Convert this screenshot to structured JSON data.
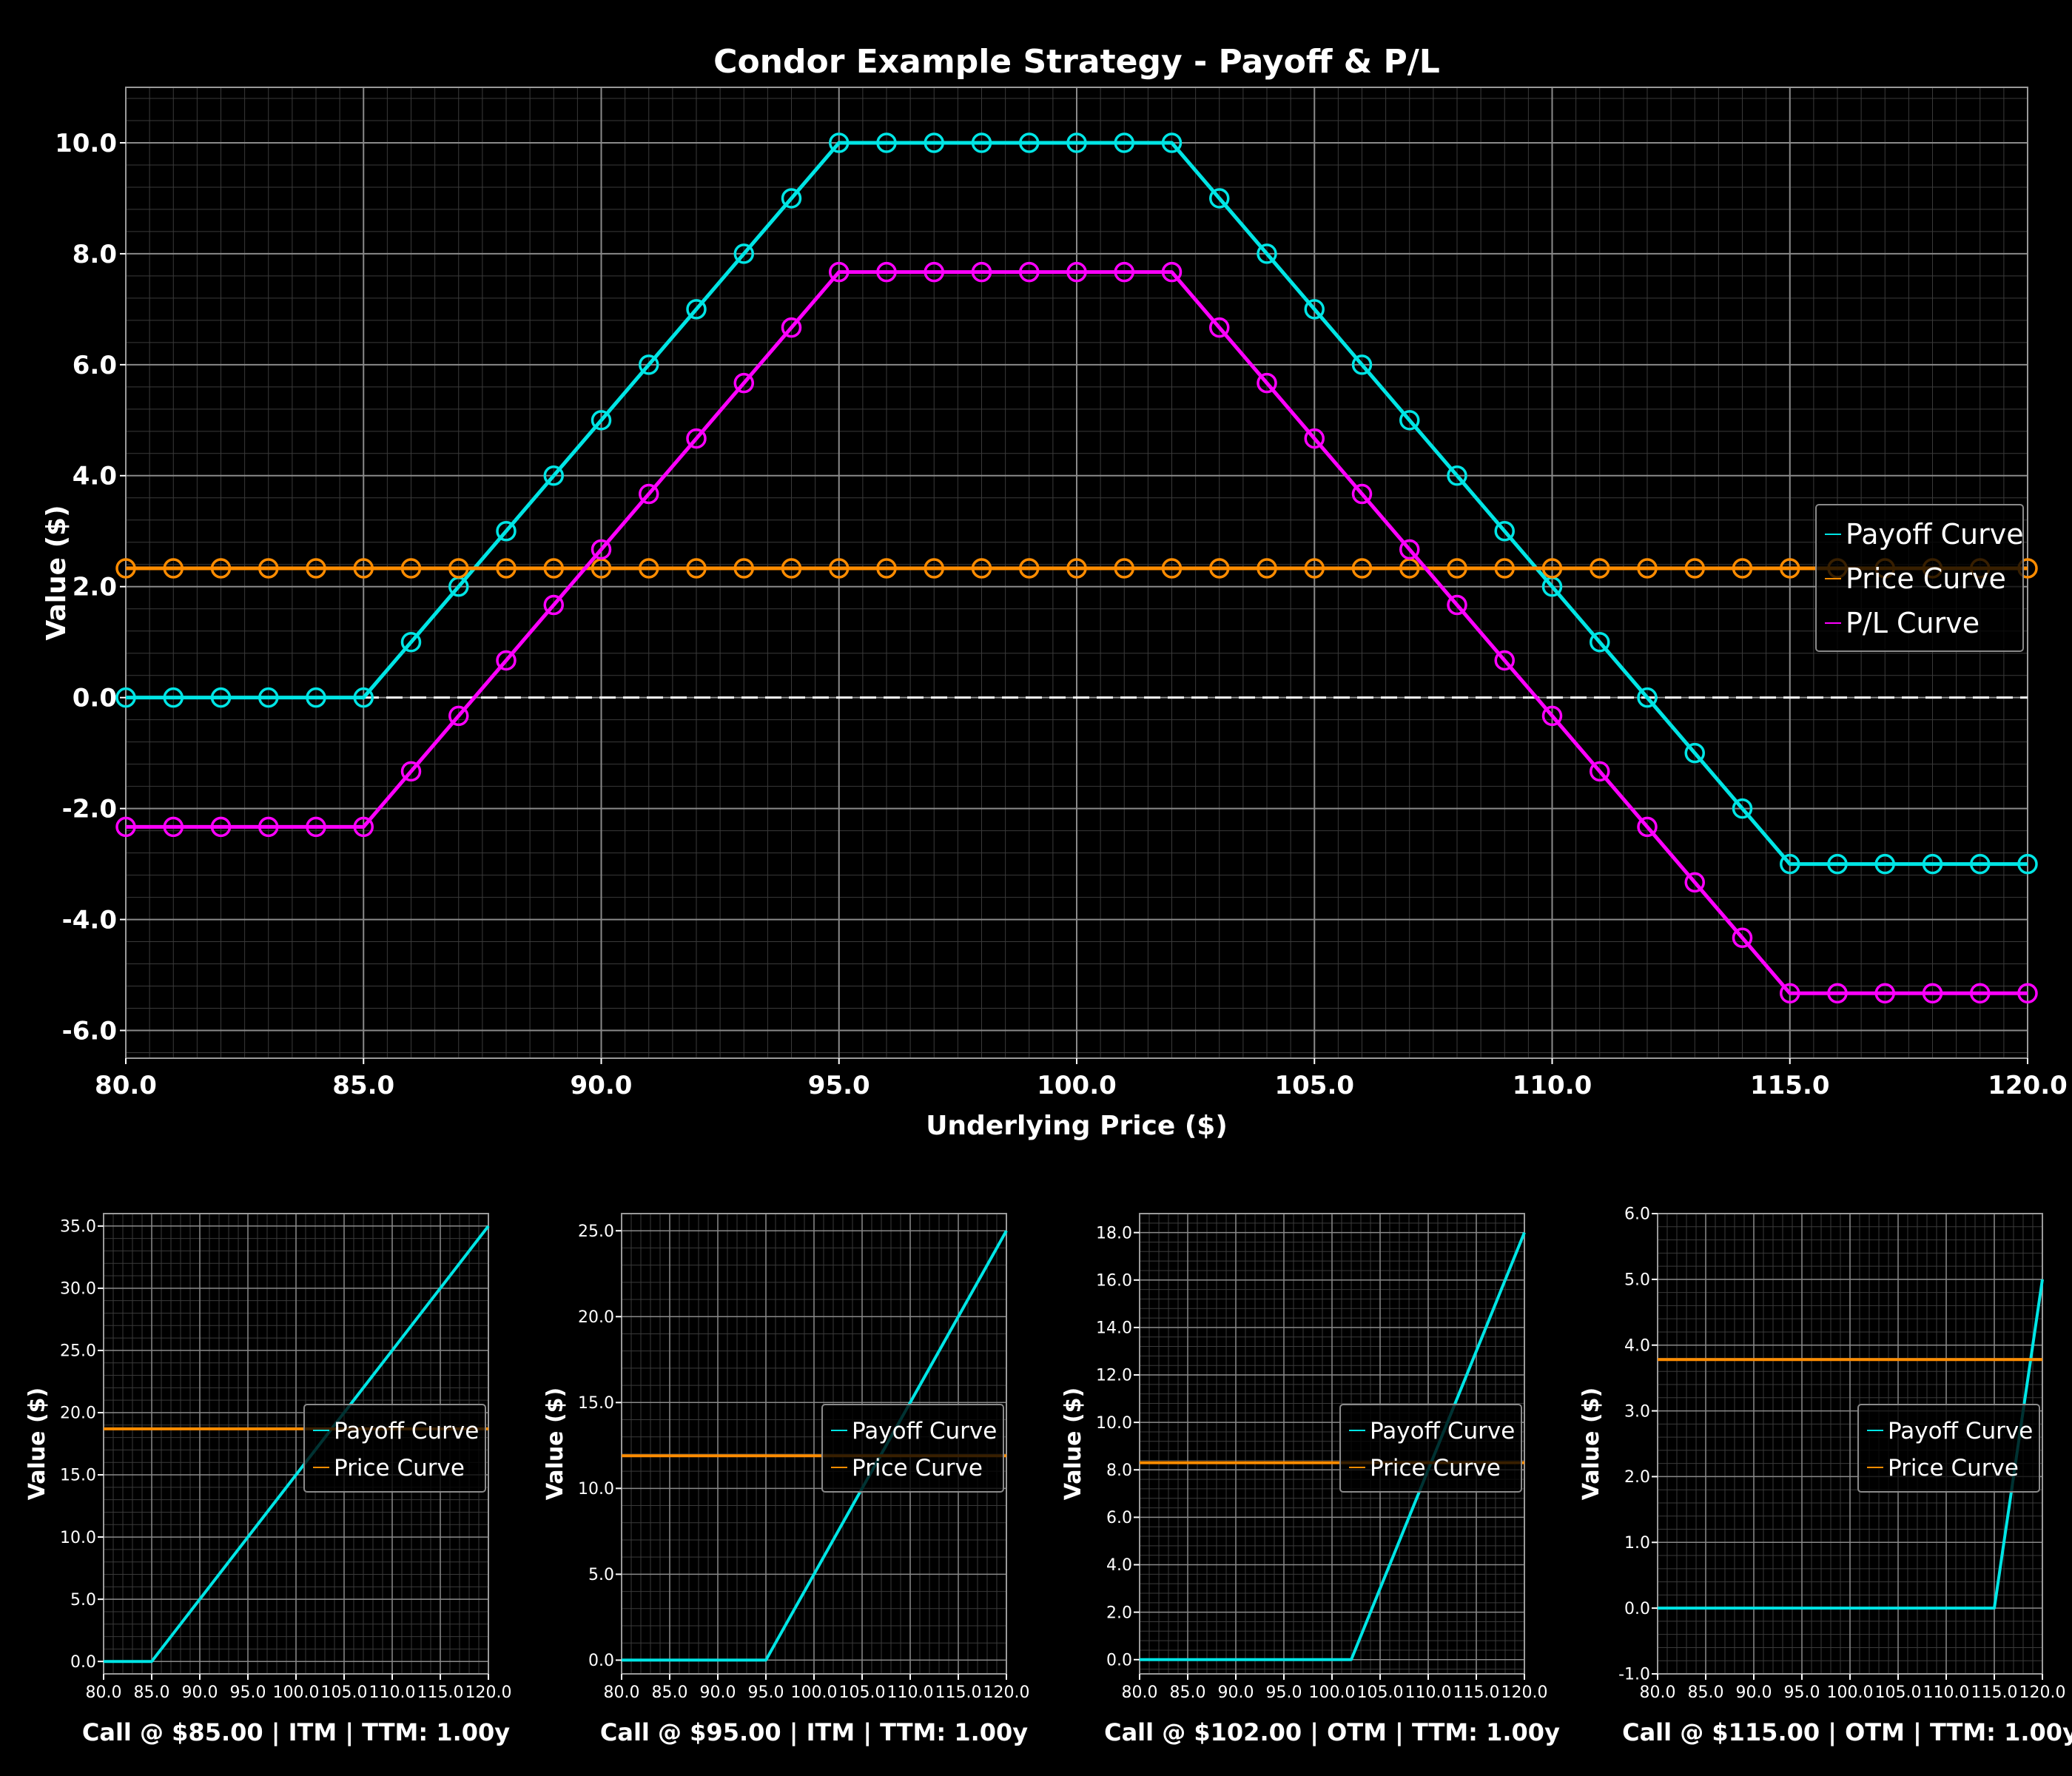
{
  "chart_data": [
    {
      "type": "line",
      "title": "Condor Example Strategy - Payoff & P/L",
      "xlabel": "Underlying Price ($)",
      "ylabel": "Value ($)",
      "xlim": [
        80,
        120
      ],
      "ylim": [
        -6.5,
        11
      ],
      "grid": true,
      "zero_line": true,
      "legend_position": "right",
      "x_ticks": [
        "80.0",
        "85.0",
        "90.0",
        "95.0",
        "100.0",
        "105.0",
        "110.0",
        "115.0",
        "120.0"
      ],
      "y_ticks": [
        "-6.0",
        "-4.0",
        "-2.0",
        "0.0",
        "2.0",
        "4.0",
        "6.0",
        "8.0",
        "10.0"
      ],
      "x": [
        80,
        81,
        82,
        83,
        84,
        85,
        86,
        87,
        88,
        89,
        90,
        91,
        92,
        93,
        94,
        95,
        96,
        97,
        98,
        99,
        100,
        101,
        102,
        103,
        104,
        105,
        106,
        107,
        108,
        109,
        110,
        111,
        112,
        113,
        114,
        115,
        116,
        117,
        118,
        119,
        120
      ],
      "series": [
        {
          "name": "Payoff Curve",
          "color": "#00e5e5",
          "marker": "circle",
          "values": [
            0,
            0,
            0,
            0,
            0,
            0,
            1,
            2,
            3,
            4,
            5,
            6,
            7,
            8,
            9,
            10,
            10,
            10,
            10,
            10,
            10,
            10,
            10,
            9,
            8,
            7,
            6,
            5,
            4,
            3,
            2,
            1,
            0,
            -1,
            -2,
            -3,
            -3,
            -3,
            -3,
            -3,
            -3
          ]
        },
        {
          "name": "Price Curve",
          "color": "#ff8c00",
          "marker": "circle",
          "values": [
            2.33,
            2.33,
            2.33,
            2.33,
            2.33,
            2.33,
            2.33,
            2.33,
            2.33,
            2.33,
            2.33,
            2.33,
            2.33,
            2.33,
            2.33,
            2.33,
            2.33,
            2.33,
            2.33,
            2.33,
            2.33,
            2.33,
            2.33,
            2.33,
            2.33,
            2.33,
            2.33,
            2.33,
            2.33,
            2.33,
            2.33,
            2.33,
            2.33,
            2.33,
            2.33,
            2.33,
            2.33,
            2.33,
            2.33,
            2.33,
            2.33
          ]
        },
        {
          "name": "P/L Curve",
          "color": "#ff00ff",
          "marker": "circle",
          "values": [
            -2.33,
            -2.33,
            -2.33,
            -2.33,
            -2.33,
            -2.33,
            -1.33,
            -0.33,
            0.67,
            1.67,
            2.67,
            3.67,
            4.67,
            5.67,
            6.67,
            7.67,
            7.67,
            7.67,
            7.67,
            7.67,
            7.67,
            7.67,
            7.67,
            6.67,
            5.67,
            4.67,
            3.67,
            2.67,
            1.67,
            0.67,
            -0.33,
            -1.33,
            -2.33,
            -3.33,
            -4.33,
            -5.33,
            -5.33,
            -5.33,
            -5.33,
            -5.33,
            -5.33
          ]
        }
      ]
    },
    {
      "type": "line",
      "title": "Call @ $85.00 | ITM | TTM: 1.00y",
      "ylabel": "Value ($)",
      "xlim": [
        80,
        120
      ],
      "ylim": [
        -1.0,
        36.0
      ],
      "strike": 85,
      "grid": true,
      "legend_position": "center-right",
      "x_ticks": [
        "80.0",
        "85.0",
        "90.0",
        "95.0",
        "100.0",
        "105.0",
        "110.0",
        "115.0",
        "120.0"
      ],
      "y_ticks": [
        "0.0",
        "5.0",
        "10.0",
        "15.0",
        "20.0",
        "25.0",
        "30.0",
        "35.0"
      ],
      "series": [
        {
          "name": "Payoff Curve",
          "color": "#00e5e5",
          "x": [
            80,
            85,
            120
          ],
          "values": [
            0,
            0,
            35
          ]
        },
        {
          "name": "Price Curve",
          "color": "#ff8c00",
          "x": [
            80,
            120
          ],
          "values": [
            18.7,
            18.7
          ]
        }
      ]
    },
    {
      "type": "line",
      "title": "Call @ $95.00 | ITM | TTM: 1.00y",
      "ylabel": "Value ($)",
      "xlim": [
        80,
        120
      ],
      "ylim": [
        -0.8,
        26.0
      ],
      "strike": 95,
      "grid": true,
      "legend_position": "center-right",
      "x_ticks": [
        "80.0",
        "85.0",
        "90.0",
        "95.0",
        "100.0",
        "105.0",
        "110.0",
        "115.0",
        "120.0"
      ],
      "y_ticks": [
        "0.0",
        "5.0",
        "10.0",
        "15.0",
        "20.0",
        "25.0"
      ],
      "series": [
        {
          "name": "Payoff Curve",
          "color": "#00e5e5",
          "x": [
            80,
            95,
            120
          ],
          "values": [
            0,
            0,
            25
          ]
        },
        {
          "name": "Price Curve",
          "color": "#ff8c00",
          "x": [
            80,
            120
          ],
          "values": [
            11.9,
            11.9
          ]
        }
      ]
    },
    {
      "type": "line",
      "title": "Call @ $102.00 | OTM | TTM: 1.00y",
      "ylabel": "Value ($)",
      "xlim": [
        80,
        120
      ],
      "ylim": [
        -0.6,
        18.8
      ],
      "strike": 102,
      "grid": true,
      "legend_position": "center-right",
      "x_ticks": [
        "80.0",
        "85.0",
        "90.0",
        "95.0",
        "100.0",
        "105.0",
        "110.0",
        "115.0",
        "120.0"
      ],
      "y_ticks": [
        "0.0",
        "2.0",
        "4.0",
        "6.0",
        "8.0",
        "10.0",
        "12.0",
        "14.0",
        "16.0",
        "18.0"
      ],
      "series": [
        {
          "name": "Payoff Curve",
          "color": "#00e5e5",
          "x": [
            80,
            102,
            120
          ],
          "values": [
            0,
            0,
            18
          ]
        },
        {
          "name": "Price Curve",
          "color": "#ff8c00",
          "x": [
            80,
            120
          ],
          "values": [
            8.3,
            8.3
          ]
        }
      ]
    },
    {
      "type": "line",
      "title": "Call @ $115.00 | OTM | TTM: 1.00y",
      "ylabel": "Value ($)",
      "xlim": [
        80,
        120
      ],
      "ylim": [
        -1.0,
        6.0
      ],
      "strike": 115,
      "grid": true,
      "legend_position": "center-right",
      "x_ticks": [
        "80.0",
        "85.0",
        "90.0",
        "95.0",
        "100.0",
        "105.0",
        "110.0",
        "115.0",
        "120.0"
      ],
      "y_ticks": [
        "-1.0",
        "0.0",
        "1.0",
        "2.0",
        "3.0",
        "4.0",
        "5.0",
        "6.0"
      ],
      "series": [
        {
          "name": "Payoff Curve",
          "color": "#00e5e5",
          "x": [
            80,
            115,
            120
          ],
          "values": [
            0,
            0,
            5
          ]
        },
        {
          "name": "Price Curve",
          "color": "#ff8c00",
          "x": [
            80,
            120
          ],
          "values": [
            3.78,
            3.78
          ]
        }
      ]
    }
  ]
}
